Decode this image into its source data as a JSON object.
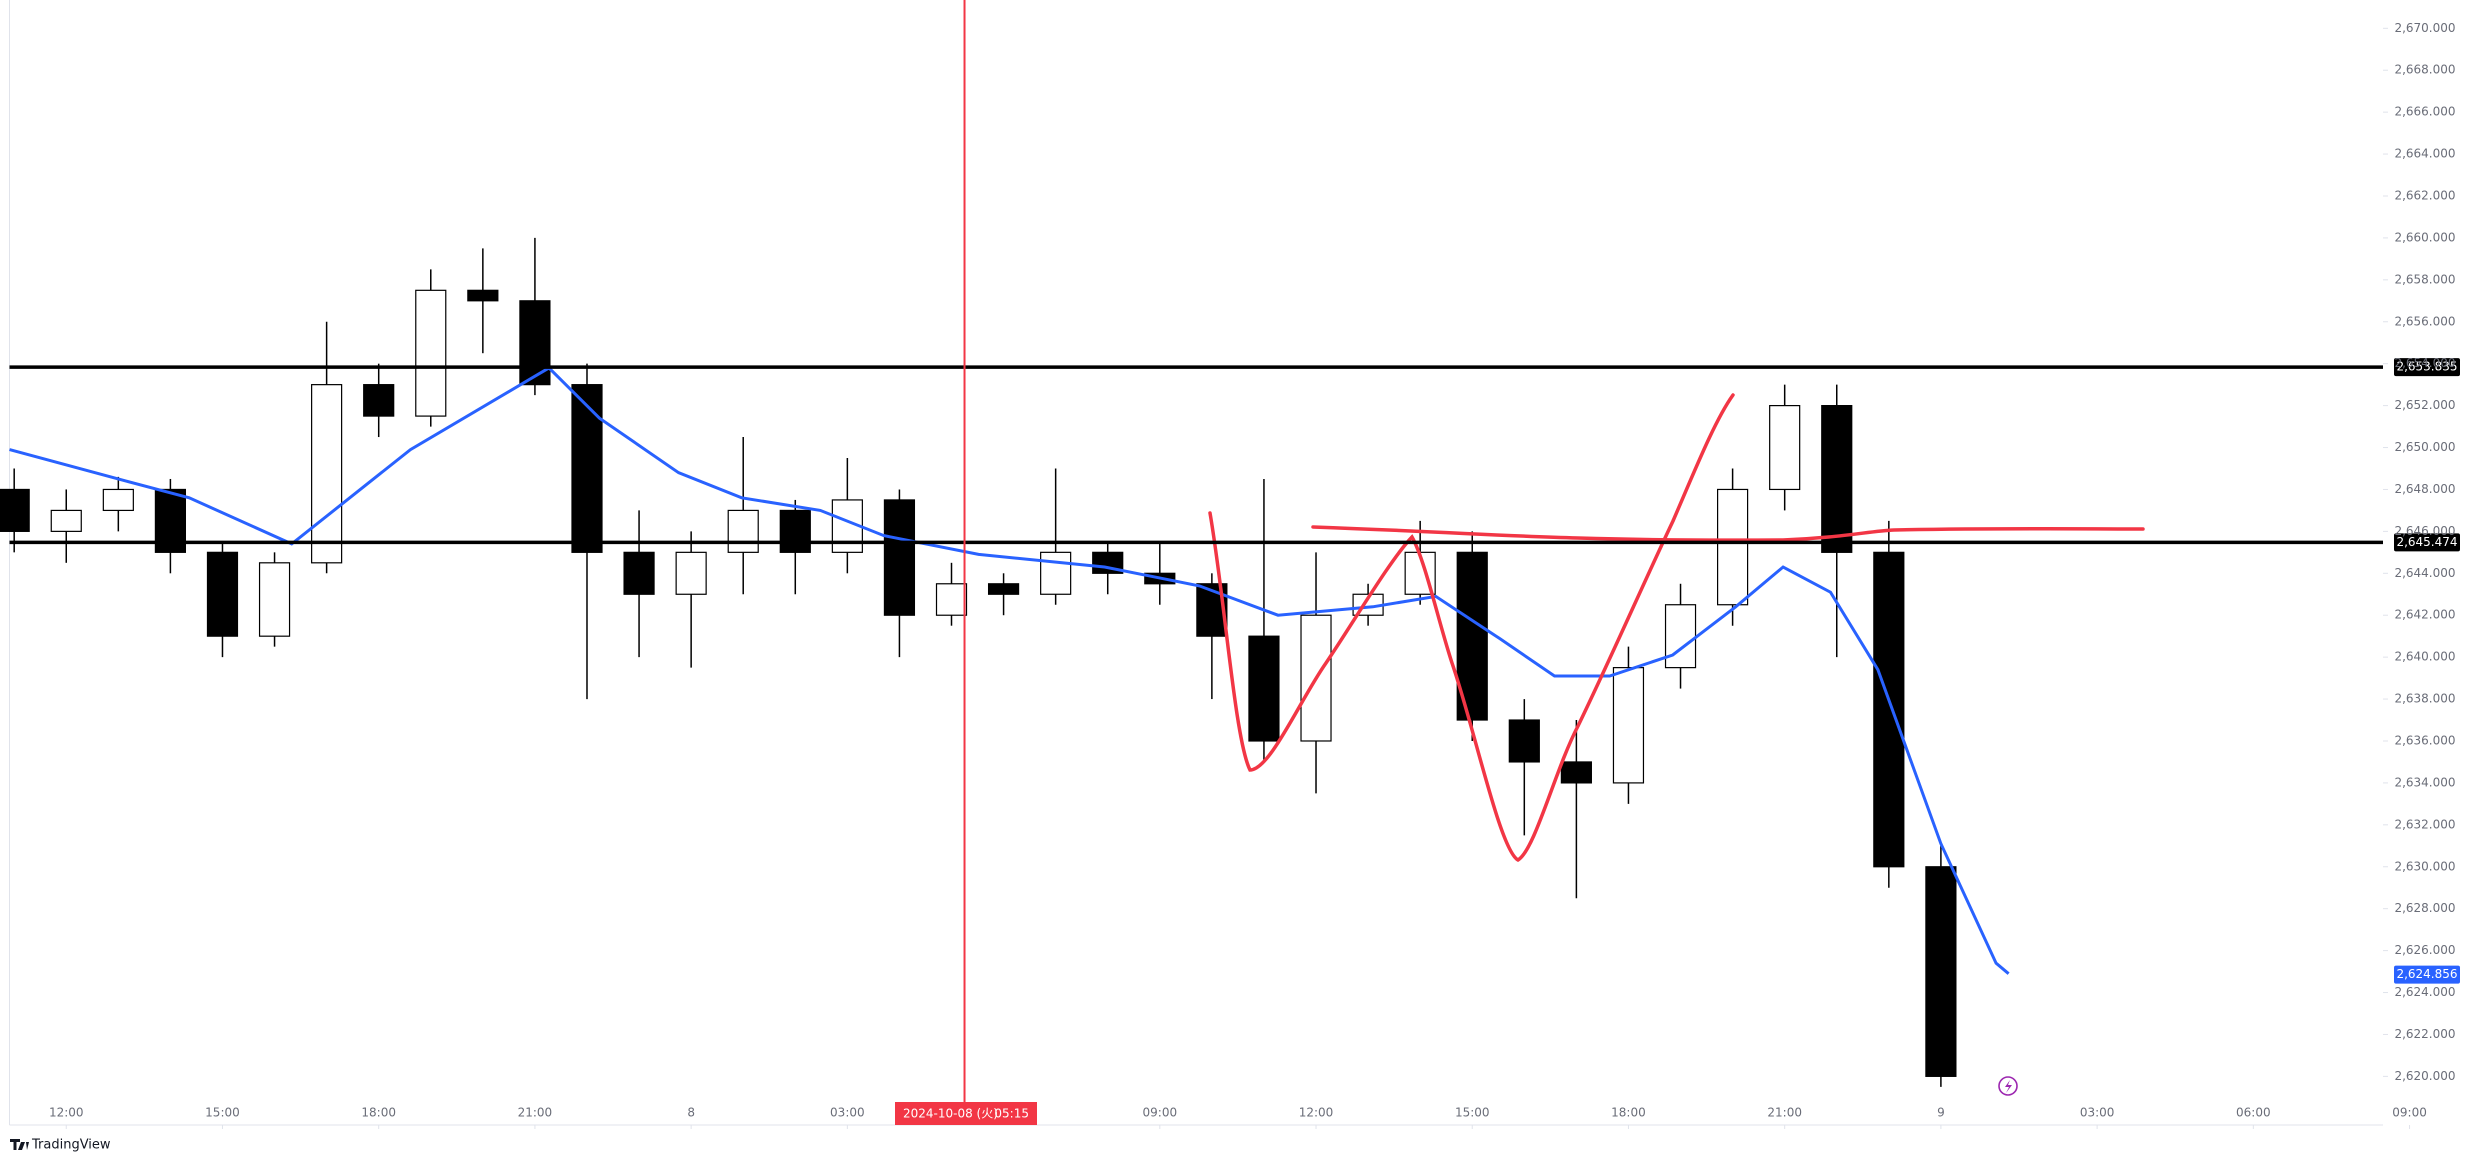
{
  "chart_data": {
    "type": "candlestick",
    "x": [
      11,
      12,
      13,
      14,
      15,
      16,
      17,
      18,
      19,
      20,
      21,
      22,
      23,
      24,
      25,
      26,
      27,
      28,
      29,
      30,
      31,
      32,
      33,
      34,
      35,
      36,
      37,
      38,
      39,
      40,
      41,
      42,
      43,
      44,
      45,
      46,
      47,
      48
    ],
    "open": [
      2648,
      2646,
      2647,
      2648,
      2645,
      2641,
      2644.5,
      2653,
      2651.5,
      2657.5,
      2657,
      2653,
      2645,
      2643,
      2645,
      2647,
      2645,
      2647.5,
      2642,
      2643.5,
      2643,
      2645,
      2644,
      2643.5,
      2641,
      2636,
      2642,
      2643,
      2645,
      2637,
      2635,
      2634,
      2639.5,
      2642.5,
      2648,
      2652,
      2645,
      2630
    ],
    "high": [
      2649,
      2648,
      2648.6,
      2648.5,
      2645.5,
      2645,
      2656,
      2654,
      2658.5,
      2659.5,
      2660,
      2654,
      2647,
      2646,
      2650.5,
      2647.5,
      2649.5,
      2648,
      2644.5,
      2644,
      2649,
      2645.5,
      2645.5,
      2644,
      2648.5,
      2645,
      2643.5,
      2646.5,
      2646,
      2638,
      2637,
      2640.5,
      2643.5,
      2649,
      2653,
      2653,
      2646.5,
      2631
    ],
    "low": [
      2645,
      2644.5,
      2646,
      2644,
      2640,
      2640.5,
      2644,
      2650.5,
      2651,
      2654.5,
      2652.5,
      2638,
      2640,
      2639.5,
      2643,
      2643,
      2644,
      2640,
      2641.5,
      2642,
      2642.5,
      2643,
      2642.5,
      2638,
      2635,
      2633.5,
      2641.5,
      2642.5,
      2636,
      2631.5,
      2628.5,
      2633,
      2638.5,
      2641.5,
      2647,
      2640,
      2629,
      2619.5
    ],
    "close": [
      2646,
      2647,
      2648,
      2645,
      2641,
      2644.5,
      2653,
      2651.5,
      2657.5,
      2657,
      2653,
      2645,
      2643,
      2645,
      2647,
      2645,
      2647.5,
      2642,
      2643.5,
      2643,
      2645,
      2644,
      2643.5,
      2641,
      2636,
      2642,
      2643,
      2645,
      2637,
      2635,
      2634,
      2639.5,
      2642.5,
      2648,
      2652,
      2645,
      2630,
      2620
    ],
    "up_color": "#ffffff",
    "down_color": "#000000",
    "ma": {
      "color": "#2962ff",
      "x": [
        10.91,
        13.15,
        14.36,
        16.33,
        18.61,
        21.27,
        22.24,
        23.76,
        24.97,
        26.48,
        27.7,
        29.52,
        31.94,
        33.76,
        35.27,
        37.09,
        38.3,
        39.52,
        40.58,
        41.64,
        42.85,
        44.06,
        44.97,
        45.88,
        46.79,
        48.0,
        49.06,
        49.3
      ],
      "values": [
        2649.9,
        2648.4,
        2647.6,
        2645.4,
        2649.9,
        2653.8,
        2651.4,
        2648.8,
        2647.6,
        2647.0,
        2645.8,
        2644.9,
        2644.3,
        2643.4,
        2642.0,
        2642.4,
        2642.9,
        2640.9,
        2639.1,
        2639.1,
        2640.1,
        2642.4,
        2644.3,
        2643.1,
        2639.4,
        2631.1,
        2625.4,
        2624.9
      ]
    },
    "hlines": [
      {
        "value": 2653.835,
        "label": "2,653.835"
      },
      {
        "value": 2645.474,
        "label": "2,645.474"
      }
    ],
    "last_price": {
      "value": 2624.856,
      "label": "2,624.856"
    },
    "crosshair": {
      "x": 29.25,
      "date_label": "2024-10-08 (火)",
      "time_label": "05:15"
    },
    "xlim": [
      10.91,
      56.49
    ],
    "ylim": [
      2617.68,
      2671.35
    ],
    "xticks": [
      {
        "value": 12,
        "label": "12:00"
      },
      {
        "value": 15,
        "label": "15:00"
      },
      {
        "value": 18,
        "label": "18:00"
      },
      {
        "value": 21,
        "label": "21:00"
      },
      {
        "value": 24,
        "label": "8"
      },
      {
        "value": 27,
        "label": "03:00"
      },
      {
        "value": 33,
        "label": "09:00"
      },
      {
        "value": 36,
        "label": "12:00"
      },
      {
        "value": 39,
        "label": "15:00"
      },
      {
        "value": 42,
        "label": "18:00"
      },
      {
        "value": 45,
        "label": "21:00"
      },
      {
        "value": 48,
        "label": "9"
      },
      {
        "value": 51,
        "label": "03:00"
      },
      {
        "value": 54,
        "label": "06:00"
      },
      {
        "value": 57,
        "label": "09:00"
      }
    ],
    "yticks": [
      {
        "value": 2620,
        "label": "2,620.000"
      },
      {
        "value": 2622,
        "label": "2,622.000"
      },
      {
        "value": 2624,
        "label": "2,624.000"
      },
      {
        "value": 2626,
        "label": "2,626.000"
      },
      {
        "value": 2628,
        "label": "2,628.000"
      },
      {
        "value": 2630,
        "label": "2,630.000"
      },
      {
        "value": 2632,
        "label": "2,632.000"
      },
      {
        "value": 2634,
        "label": "2,634.000"
      },
      {
        "value": 2636,
        "label": "2,636.000"
      },
      {
        "value": 2638,
        "label": "2,638.000"
      },
      {
        "value": 2640,
        "label": "2,640.000"
      },
      {
        "value": 2642,
        "label": "2,642.000"
      },
      {
        "value": 2644,
        "label": "2,644.000"
      },
      {
        "value": 2646,
        "label": "2,646.000"
      },
      {
        "value": 2648,
        "label": "2,648.000"
      },
      {
        "value": 2650,
        "label": "2,650.000"
      },
      {
        "value": 2652,
        "label": "2,652.000"
      },
      {
        "value": 2654,
        "label": "2,654.000"
      },
      {
        "value": 2656,
        "label": "2,656.000"
      },
      {
        "value": 2658,
        "label": "2,658.000"
      },
      {
        "value": 2660,
        "label": "2,660.000"
      },
      {
        "value": 2662,
        "label": "2,662.000"
      },
      {
        "value": 2664,
        "label": "2,664.000"
      },
      {
        "value": 2666,
        "label": "2,666.000"
      },
      {
        "value": 2668,
        "label": "2,668.000"
      },
      {
        "value": 2670,
        "label": "2,670.000"
      }
    ],
    "watermark": "TradingView"
  }
}
